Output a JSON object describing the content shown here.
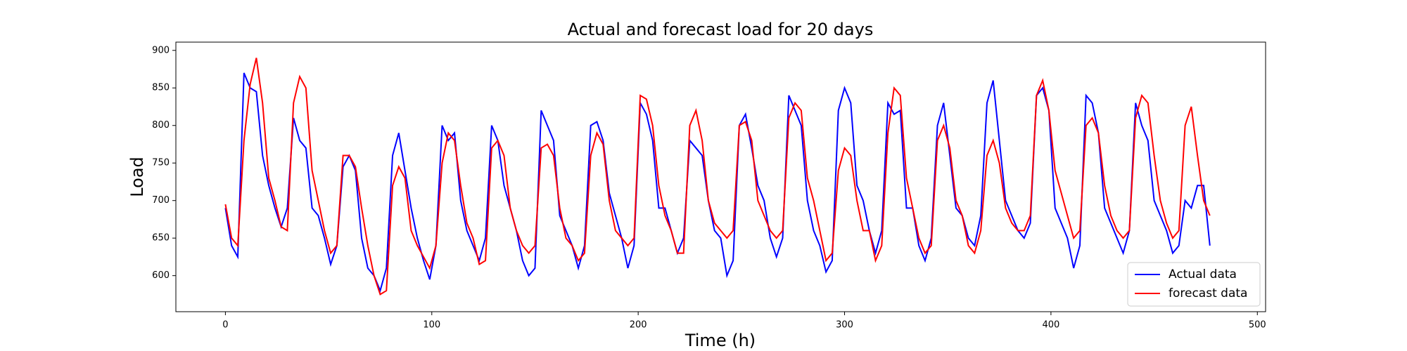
{
  "chart_data": {
    "type": "line",
    "title": "Actual and forecast load for 20 days",
    "x_label": "Time (h)",
    "y_label": "Load",
    "x": [
      0,
      3,
      6,
      9,
      12,
      15,
      18,
      21,
      24,
      27,
      30,
      33,
      36,
      39,
      42,
      45,
      48,
      51,
      54,
      57,
      60,
      63,
      66,
      69,
      72,
      75,
      78,
      81,
      84,
      87,
      90,
      93,
      96,
      99,
      102,
      105,
      108,
      111,
      114,
      117,
      120,
      123,
      126,
      129,
      132,
      135,
      138,
      141,
      144,
      147,
      150,
      153,
      156,
      159,
      162,
      165,
      168,
      171,
      174,
      177,
      180,
      183,
      186,
      189,
      192,
      195,
      198,
      201,
      204,
      207,
      210,
      213,
      216,
      219,
      222,
      225,
      228,
      231,
      234,
      237,
      240,
      243,
      246,
      249,
      252,
      255,
      258,
      261,
      264,
      267,
      270,
      273,
      276,
      279,
      282,
      285,
      288,
      291,
      294,
      297,
      300,
      303,
      306,
      309,
      312,
      315,
      318,
      321,
      324,
      327,
      330,
      333,
      336,
      339,
      342,
      345,
      348,
      351,
      354,
      357,
      360,
      363,
      366,
      369,
      372,
      375,
      378,
      381,
      384,
      387,
      390,
      393,
      396,
      399,
      402,
      405,
      408,
      411,
      414,
      417,
      420,
      423,
      426,
      429,
      432,
      435,
      438,
      441,
      444,
      447,
      450,
      453,
      456,
      459,
      462,
      465,
      468,
      471,
      474,
      477
    ],
    "series": [
      {
        "name": "Actual data",
        "color": "#0000ff",
        "values": [
          690,
          640,
          625,
          870,
          850,
          845,
          760,
          720,
          690,
          665,
          690,
          810,
          780,
          770,
          690,
          680,
          650,
          615,
          640,
          745,
          760,
          740,
          650,
          610,
          600,
          580,
          610,
          760,
          790,
          740,
          690,
          650,
          620,
          595,
          640,
          800,
          780,
          790,
          700,
          660,
          640,
          620,
          650,
          800,
          780,
          720,
          690,
          660,
          620,
          600,
          610,
          820,
          800,
          780,
          680,
          660,
          640,
          610,
          640,
          800,
          805,
          780,
          710,
          680,
          650,
          610,
          640,
          830,
          815,
          780,
          690,
          690,
          660,
          630,
          650,
          780,
          770,
          760,
          700,
          660,
          650,
          600,
          620,
          800,
          815,
          770,
          720,
          700,
          650,
          625,
          650,
          840,
          820,
          800,
          700,
          660,
          640,
          605,
          620,
          820,
          850,
          830,
          720,
          700,
          660,
          630,
          660,
          830,
          815,
          820,
          690,
          690,
          640,
          620,
          650,
          800,
          830,
          760,
          690,
          680,
          650,
          640,
          680,
          830,
          860,
          780,
          700,
          680,
          660,
          650,
          670,
          840,
          850,
          820,
          690,
          670,
          650,
          610,
          640,
          840,
          830,
          790,
          690,
          670,
          650,
          630,
          660,
          830,
          800,
          780,
          700,
          680,
          660,
          630,
          640,
          700,
          690,
          720,
          720,
          640
        ]
      },
      {
        "name": "forecast data",
        "color": "#ff0000",
        "values": [
          695,
          650,
          640,
          780,
          855,
          890,
          830,
          730,
          700,
          665,
          660,
          830,
          865,
          850,
          740,
          700,
          660,
          630,
          640,
          760,
          760,
          745,
          690,
          640,
          600,
          575,
          580,
          720,
          745,
          730,
          660,
          640,
          625,
          610,
          640,
          750,
          790,
          780,
          720,
          670,
          650,
          615,
          620,
          770,
          780,
          760,
          690,
          660,
          640,
          630,
          640,
          770,
          775,
          760,
          690,
          650,
          640,
          620,
          630,
          760,
          790,
          775,
          700,
          660,
          650,
          640,
          650,
          840,
          835,
          800,
          720,
          680,
          660,
          630,
          630,
          800,
          820,
          780,
          700,
          670,
          660,
          650,
          660,
          800,
          805,
          780,
          700,
          680,
          660,
          650,
          660,
          810,
          830,
          820,
          730,
          700,
          660,
          620,
          630,
          740,
          770,
          760,
          700,
          660,
          660,
          620,
          640,
          790,
          850,
          840,
          730,
          690,
          650,
          630,
          640,
          780,
          800,
          770,
          700,
          680,
          640,
          630,
          660,
          760,
          780,
          750,
          690,
          670,
          660,
          660,
          680,
          840,
          860,
          820,
          740,
          710,
          680,
          650,
          660,
          800,
          810,
          790,
          720,
          680,
          660,
          650,
          660,
          810,
          840,
          830,
          760,
          700,
          670,
          650,
          660,
          800,
          825,
          760,
          700,
          680
        ]
      }
    ],
    "xlim": [
      -24,
      504
    ],
    "ylim": [
      552,
      911
    ],
    "xticks": [
      0,
      100,
      200,
      300,
      400,
      500
    ],
    "yticks": [
      600,
      650,
      700,
      750,
      800,
      850,
      900
    ],
    "legend": "lower right"
  }
}
